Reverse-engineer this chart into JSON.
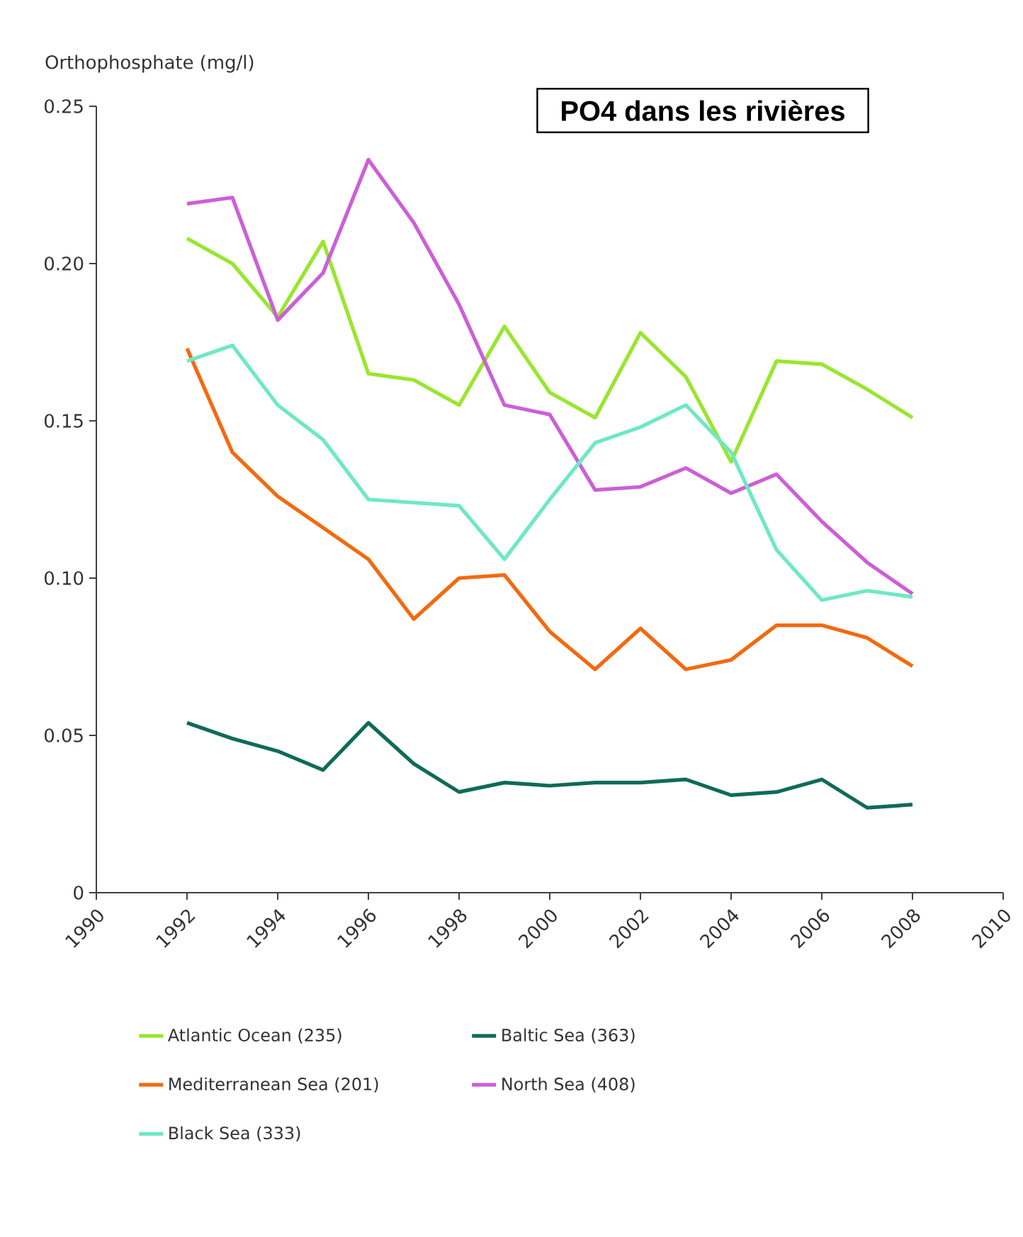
{
  "chart_data": {
    "type": "line",
    "title": "PO4 dans les rivières",
    "ylabel": "Orthophosphate (mg/l)",
    "x": [
      1992,
      1993,
      1994,
      1995,
      1996,
      1997,
      1998,
      1999,
      2000,
      2001,
      2002,
      2003,
      2004,
      2005,
      2006,
      2007,
      2008
    ],
    "xlim": [
      1990,
      2010
    ],
    "xticks": [
      1990,
      1992,
      1994,
      1996,
      1998,
      2000,
      2002,
      2004,
      2006,
      2008,
      2010
    ],
    "ylim": [
      0,
      0.25
    ],
    "yticks": [
      0,
      0.05,
      {
        "value": 0.1,
        "label": "0.10"
      },
      0.15,
      {
        "value": 0.2,
        "label": "0.20"
      },
      0.25
    ],
    "grid": false,
    "legend": "bottom",
    "marker": "none",
    "line_style": "solid",
    "series": [
      {
        "name": "Atlantic Ocean (235)",
        "color": "#99e62e",
        "values": [
          0.208,
          0.2,
          0.183,
          0.207,
          0.165,
          0.163,
          0.155,
          0.18,
          0.159,
          0.151,
          0.178,
          0.164,
          0.137,
          0.169,
          0.168,
          0.16,
          0.151
        ]
      },
      {
        "name": "Baltic Sea (363)",
        "color": "#0e6b58",
        "values": [
          0.054,
          0.049,
          0.045,
          0.039,
          0.054,
          0.041,
          0.032,
          0.035,
          0.034,
          0.035,
          0.035,
          0.036,
          0.031,
          0.032,
          0.036,
          0.027,
          0.028
        ]
      },
      {
        "name": "Mediterranean Sea (201)",
        "color": "#f26a10",
        "values": [
          0.173,
          0.14,
          0.126,
          0.116,
          0.106,
          0.087,
          0.1,
          0.101,
          0.083,
          0.071,
          0.084,
          0.071,
          0.074,
          0.085,
          0.085,
          0.081,
          0.072
        ]
      },
      {
        "name": "North Sea (408)",
        "color": "#cc5fd6",
        "values": [
          0.219,
          0.221,
          0.182,
          0.197,
          0.233,
          0.213,
          0.187,
          0.155,
          0.152,
          0.128,
          0.129,
          0.135,
          0.127,
          0.133,
          0.118,
          0.105,
          0.095
        ]
      },
      {
        "name": "Black Sea (333)",
        "color": "#6ee8c5",
        "values": [
          0.169,
          0.174,
          0.155,
          0.144,
          0.125,
          0.124,
          0.123,
          0.106,
          0.125,
          0.143,
          0.148,
          0.155,
          0.14,
          0.109,
          0.093,
          0.096,
          0.094
        ]
      }
    ]
  }
}
